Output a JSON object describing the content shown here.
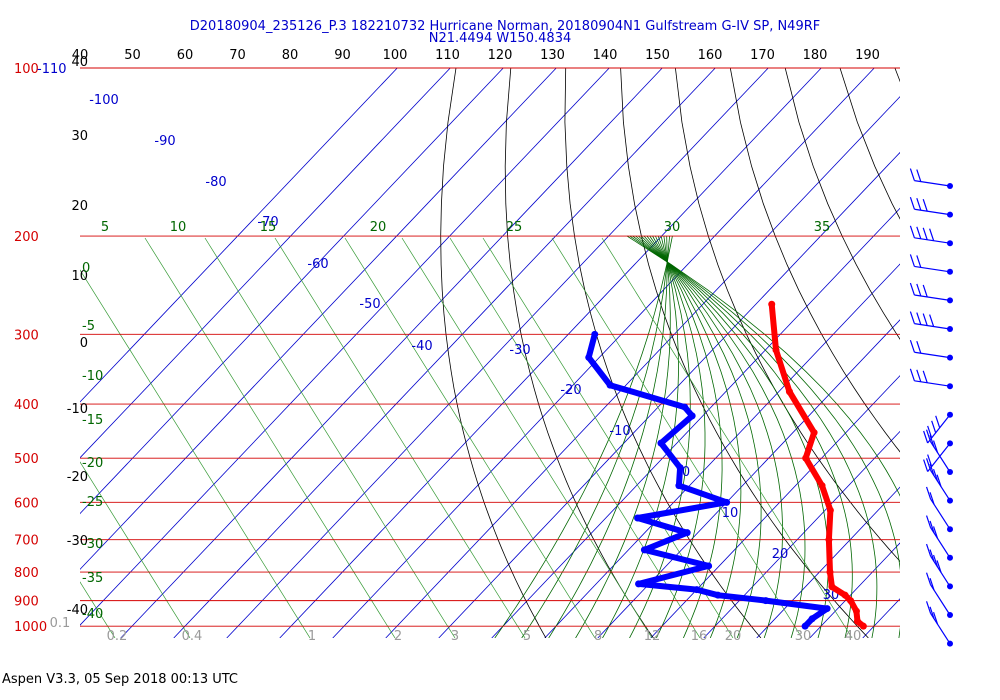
{
  "title_line1": "D20180904_235126_P.3 182210732 Hurricane Norman, 20180904N1 Gulfstream G-IV SP, N49RF",
  "title_line2": "N21.4494 W150.4834",
  "footer": "Aspen V3.3, 05 Sep 2018  00:13 UTC",
  "colors": {
    "isobar": "#d40000",
    "isotherm": "#0000cc",
    "dry_adiabat": "#000000",
    "moist_adiabat": "#006600",
    "mixing_ratio": "#339933",
    "temperature": "#ff0000",
    "dewpoint": "#0000ff",
    "title": "#0000cc"
  },
  "chart_data": {
    "type": "scatter",
    "skew_t": true,
    "pressure_labels": [
      "100",
      "200",
      "300",
      "400",
      "500",
      "600",
      "700",
      "800",
      "900",
      "1000"
    ],
    "pressure_label_extra": "-110",
    "temperature_top_labels": [
      "40",
      "50",
      "60",
      "70",
      "80",
      "90",
      "100",
      "110",
      "120",
      "130",
      "140",
      "150",
      "160",
      "170",
      "180",
      "190"
    ],
    "left_axis_labels": [
      "40",
      "30",
      "20",
      "10",
      "0",
      "-10",
      "-20",
      "-30",
      "-40"
    ],
    "isotherm_labels": [
      "-100",
      "-90",
      "-80",
      "-70",
      "-60",
      "-50",
      "-40",
      "-30",
      "-20",
      "-10",
      "0",
      "10",
      "20",
      "30"
    ],
    "moist_adiabat_labels": [
      "5",
      "10",
      "15",
      "20",
      "25",
      "30",
      "35"
    ],
    "moist_left_labels": [
      "0",
      "-5",
      "-10",
      "-15",
      "-20",
      "-25",
      "-30",
      "-35",
      "-40"
    ],
    "mixing_ratio_labels": [
      "0.1",
      "0.2",
      "0.4",
      "1",
      "2",
      "3",
      "5",
      "8",
      "12",
      "16",
      "20",
      "30",
      "40"
    ],
    "temperature_profile": {
      "name": "Temperature",
      "points": [
        {
          "p": 265,
          "t": -47
        },
        {
          "p": 320,
          "t": -38
        },
        {
          "p": 380,
          "t": -28
        },
        {
          "p": 450,
          "t": -16
        },
        {
          "p": 500,
          "t": -13
        },
        {
          "p": 560,
          "t": -5
        },
        {
          "p": 620,
          "t": 1
        },
        {
          "p": 700,
          "t": 6
        },
        {
          "p": 800,
          "t": 12
        },
        {
          "p": 850,
          "t": 15
        },
        {
          "p": 880,
          "t": 19
        },
        {
          "p": 900,
          "t": 21
        },
        {
          "p": 940,
          "t": 24
        },
        {
          "p": 980,
          "t": 26
        },
        {
          "p": 1000,
          "t": 28
        }
      ]
    },
    "dewpoint_profile": {
      "name": "Dewpoint",
      "points": [
        {
          "p": 300,
          "t": -75
        },
        {
          "p": 330,
          "t": -72
        },
        {
          "p": 370,
          "t": -63
        },
        {
          "p": 405,
          "t": -45
        },
        {
          "p": 420,
          "t": -42
        },
        {
          "p": 470,
          "t": -43
        },
        {
          "p": 520,
          "t": -35
        },
        {
          "p": 560,
          "t": -32
        },
        {
          "p": 600,
          "t": -20
        },
        {
          "p": 640,
          "t": -34
        },
        {
          "p": 680,
          "t": -22
        },
        {
          "p": 730,
          "t": -27
        },
        {
          "p": 780,
          "t": -12
        },
        {
          "p": 840,
          "t": -22
        },
        {
          "p": 860,
          "t": -10
        },
        {
          "p": 880,
          "t": -5
        },
        {
          "p": 900,
          "t": 5
        },
        {
          "p": 930,
          "t": 18
        },
        {
          "p": 970,
          "t": 17
        },
        {
          "p": 1000,
          "t": 17
        }
      ]
    },
    "wind_barb_count": 17
  }
}
